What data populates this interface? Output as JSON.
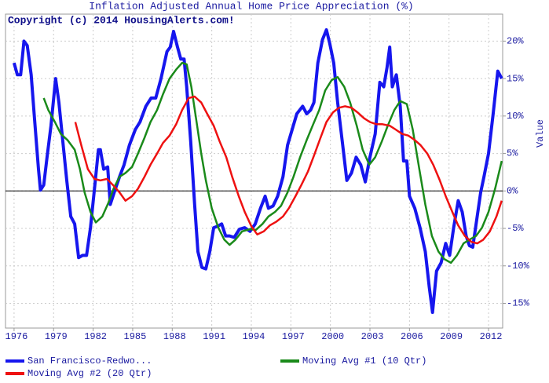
{
  "chart_data": {
    "type": "line",
    "title": "Inflation Adjusted Annual Home Price Appreciation (%)",
    "annotation": "Copyright (c) 2014 HousingAlerts.com!",
    "ylabel": "Value",
    "xlim": [
      1975.35,
      2013.07
    ],
    "ylim": [
      -18.3,
      23.6
    ],
    "xticks": [
      1976,
      1979,
      1982,
      1985,
      1988,
      1991,
      1994,
      1997,
      2000,
      2003,
      2006,
      2009,
      2012
    ],
    "yticks": [
      {
        "value": -15,
        "label": "-15%"
      },
      {
        "value": -10,
        "label": "-10%"
      },
      {
        "value": -5,
        "label": "-5%"
      },
      {
        "value": 0,
        "label": "0%"
      },
      {
        "value": 5,
        "label": "5%"
      },
      {
        "value": 10,
        "label": "10%"
      },
      {
        "value": 15,
        "label": "15%"
      },
      {
        "value": 20,
        "label": "20%"
      }
    ],
    "grid": true,
    "legend": "bottom",
    "series": [
      {
        "name": "San Francisco-Redwo...",
        "color": "#1616ee",
        "x": [
          1976.0,
          1976.25,
          1976.5,
          1976.75,
          1977.0,
          1977.3,
          1977.55,
          1977.85,
          1978.0,
          1978.25,
          1978.5,
          1978.8,
          1979.15,
          1979.4,
          1979.7,
          1980.0,
          1980.3,
          1980.6,
          1980.9,
          1981.2,
          1981.5,
          1981.8,
          1982.1,
          1982.4,
          1982.55,
          1982.8,
          1983.1,
          1983.3,
          1983.6,
          1984.0,
          1984.35,
          1984.75,
          1985.2,
          1985.55,
          1986.0,
          1986.4,
          1986.75,
          1987.15,
          1987.6,
          1987.85,
          1988.1,
          1988.4,
          1988.65,
          1988.9,
          1989.1,
          1989.4,
          1989.7,
          1989.95,
          1990.25,
          1990.55,
          1990.85,
          1991.15,
          1991.45,
          1991.75,
          1992.05,
          1992.35,
          1992.7,
          1993.1,
          1993.5,
          1993.9,
          1994.3,
          1994.7,
          1995.05,
          1995.3,
          1995.65,
          1996.0,
          1996.4,
          1996.75,
          1997.1,
          1997.45,
          1997.9,
          1998.2,
          1998.5,
          1998.75,
          1999.05,
          1999.4,
          1999.7,
          1999.95,
          2000.25,
          2000.55,
          2000.9,
          2001.25,
          2001.6,
          2001.95,
          2002.3,
          2002.65,
          2003.0,
          2003.4,
          2003.75,
          2004.05,
          2004.3,
          2004.5,
          2004.7,
          2005.0,
          2005.3,
          2005.55,
          2005.8,
          2006.0,
          2006.4,
          2006.8,
          2007.2,
          2007.5,
          2007.75,
          2008.05,
          2008.4,
          2008.75,
          2009.05,
          2009.35,
          2009.7,
          2010.0,
          2010.3,
          2010.55,
          2010.8,
          2011.1,
          2011.4,
          2011.65,
          2012.0,
          2012.35,
          2012.7,
          2013.0
        ],
        "values": [
          17.1,
          15.5,
          15.5,
          20,
          19.4,
          15.5,
          9.7,
          2.9,
          0.1,
          0.8,
          4.5,
          8.7,
          15,
          11.8,
          6.6,
          1.4,
          -3.4,
          -4.4,
          -8.9,
          -8.6,
          -8.6,
          -4.9,
          0.3,
          5.5,
          5.5,
          2.9,
          3.2,
          -1.8,
          -0.2,
          1.9,
          3.5,
          6.1,
          8.2,
          9.2,
          11.3,
          12.4,
          12.4,
          15,
          18.6,
          19.2,
          21.3,
          19.2,
          17.6,
          17.6,
          13.9,
          6.6,
          -1.8,
          -8.1,
          -10.2,
          -10.4,
          -8.1,
          -4.9,
          -4.7,
          -4.4,
          -6,
          -6,
          -6.2,
          -5.1,
          -4.9,
          -5.4,
          -4.4,
          -2.3,
          -0.7,
          -2.3,
          -2,
          -0.7,
          1.9,
          6.1,
          8.2,
          10.3,
          11.3,
          10.3,
          10.8,
          11.8,
          17.1,
          20.2,
          21.5,
          19.7,
          17.1,
          11.8,
          6.6,
          1.4,
          2.4,
          4.5,
          3.5,
          1.2,
          4.5,
          7.6,
          14.5,
          13.9,
          16.5,
          19.2,
          13.9,
          15.5,
          11.3,
          4,
          4,
          -0.7,
          -2.3,
          -4.9,
          -8.1,
          -12.8,
          -16.2,
          -10.7,
          -9.6,
          -7,
          -8.6,
          -4.9,
          -1.3,
          -2.8,
          -6,
          -7.3,
          -7.5,
          -3.9,
          -0.2,
          1.9,
          5,
          10.3,
          16,
          15
        ]
      },
      {
        "name": "Moving Avg #1 (10 Qtr)",
        "color": "#1a8a1a",
        "x": [
          1978.25,
          1978.6,
          1979.1,
          1979.55,
          1980.05,
          1980.6,
          1981.0,
          1981.35,
          1981.8,
          1982.2,
          1982.7,
          1983.15,
          1983.55,
          1984.0,
          1984.45,
          1984.95,
          1985.4,
          1985.9,
          1986.35,
          1986.85,
          1987.3,
          1987.8,
          1988.3,
          1988.75,
          1989.1,
          1989.45,
          1989.85,
          1990.2,
          1990.55,
          1991.0,
          1991.5,
          1991.95,
          1992.35,
          1992.8,
          1993.3,
          1993.9,
          1994.35,
          1994.85,
          1995.3,
          1995.8,
          1996.25,
          1996.75,
          1997.2,
          1997.7,
          1998.2,
          1998.65,
          1999.15,
          1999.6,
          2000.1,
          2000.55,
          2001.05,
          2001.5,
          2002.0,
          2002.45,
          2002.95,
          2003.4,
          2003.9,
          2004.35,
          2004.85,
          2005.3,
          2005.8,
          2006.25,
          2006.75,
          2007.2,
          2007.7,
          2008.2,
          2008.65,
          2009.15,
          2009.6,
          2010.1,
          2010.55,
          2011.05,
          2011.5,
          2012.0,
          2012.5,
          2013.0
        ],
        "values": [
          12.4,
          10.8,
          9.2,
          7.6,
          6.8,
          5.5,
          2.9,
          -0.2,
          -2.8,
          -4.2,
          -3.4,
          -1.6,
          0.3,
          1.9,
          2.4,
          3.2,
          5,
          7.1,
          9.2,
          10.8,
          12.9,
          15,
          16.2,
          17.1,
          16.9,
          13.9,
          9.2,
          5,
          1.4,
          -2.3,
          -4.9,
          -6.5,
          -7.2,
          -6.5,
          -5.4,
          -5.1,
          -5.2,
          -4.4,
          -3.4,
          -2.8,
          -2,
          -0.2,
          1.9,
          4.5,
          6.8,
          8.7,
          10.8,
          13.4,
          14.8,
          15.2,
          13.9,
          11.8,
          8.7,
          5.5,
          3.5,
          4.5,
          6.6,
          8.7,
          10.8,
          12,
          11.6,
          8.2,
          2.9,
          -1.8,
          -6,
          -8.1,
          -9.1,
          -9.6,
          -8.6,
          -7,
          -6.5,
          -6,
          -4.9,
          -2.8,
          0.3,
          4
        ]
      },
      {
        "name": "Moving Avg #2 (20 Qtr)",
        "color": "#ee1111",
        "x": [
          1980.65,
          1981.1,
          1981.6,
          1982.1,
          1982.55,
          1983.05,
          1983.5,
          1984.0,
          1984.45,
          1984.95,
          1985.4,
          1985.9,
          1986.35,
          1986.85,
          1987.3,
          1987.8,
          1988.3,
          1988.75,
          1989.25,
          1989.7,
          1990.2,
          1990.65,
          1991.15,
          1991.6,
          1992.1,
          1992.55,
          1993.05,
          1993.5,
          1994.0,
          1994.45,
          1994.95,
          1995.4,
          1995.9,
          1996.4,
          1996.85,
          1997.35,
          1997.8,
          1998.3,
          1998.75,
          1999.25,
          1999.7,
          2000.2,
          2000.65,
          2001.1,
          2001.6,
          2002.05,
          2002.55,
          2003.0,
          2003.5,
          2003.95,
          2004.5,
          2004.95,
          2005.45,
          2005.9,
          2006.4,
          2006.85,
          2007.35,
          2007.8,
          2008.3,
          2008.75,
          2009.25,
          2009.7,
          2010.2,
          2010.7,
          2011.15,
          2011.6,
          2012.1,
          2012.6,
          2013.0
        ],
        "values": [
          9.2,
          6.1,
          2.9,
          1.6,
          1.4,
          1.6,
          0.8,
          -0.2,
          -1.3,
          -0.7,
          0.3,
          1.9,
          3.5,
          5,
          6.4,
          7.4,
          8.9,
          10.8,
          12.4,
          12.6,
          11.8,
          10.3,
          8.7,
          6.6,
          4.5,
          1.9,
          -0.7,
          -2.8,
          -4.7,
          -5.8,
          -5.4,
          -4.6,
          -4.1,
          -3.4,
          -2.3,
          -0.7,
          0.8,
          2.6,
          4.7,
          7.1,
          9.2,
          10.5,
          11.1,
          11.3,
          11.1,
          10.5,
          9.7,
          9.2,
          8.9,
          8.9,
          8.7,
          8.2,
          7.6,
          7.4,
          6.8,
          6.1,
          5,
          3.5,
          1.4,
          -0.7,
          -2.8,
          -4.6,
          -6,
          -6.8,
          -7,
          -6.5,
          -5.4,
          -3.4,
          -1.3
        ]
      }
    ]
  }
}
